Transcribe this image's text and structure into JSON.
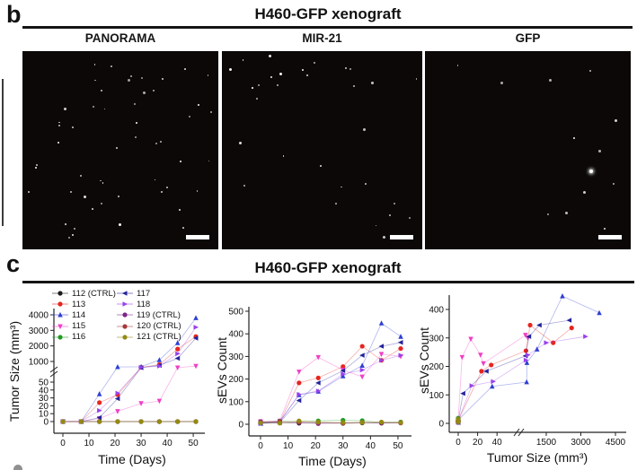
{
  "figure": {
    "panel_b": {
      "label": "b",
      "title": "H460-GFP xenograft",
      "images": [
        {
          "name": "PANORAMA",
          "dot_count": 52,
          "seed": 7
        },
        {
          "name": "MIR-21",
          "dot_count": 30,
          "seed": 13
        },
        {
          "name": "GFP",
          "dot_count": 12,
          "seed": 21
        }
      ]
    },
    "panel_c": {
      "label": "c",
      "title": "H460-GFP xenograft"
    }
  },
  "days": [
    0,
    7,
    14,
    21,
    30,
    37,
    44,
    51
  ],
  "series": [
    {
      "id": "112",
      "label": "112 (CTRL)",
      "marker": "circle",
      "color": "#1a1a1a",
      "tumor": [
        0,
        0,
        0,
        0,
        0,
        0,
        0,
        0
      ],
      "sevs": [
        5,
        8,
        5,
        6,
        4,
        6,
        5,
        6
      ]
    },
    {
      "id": "113",
      "label": "113",
      "marker": "circle",
      "color": "#e62520",
      "tumor": [
        0,
        0,
        24,
        34,
        620,
        800,
        1800,
        2600
      ],
      "sevs": [
        8,
        10,
        183,
        205,
        255,
        345,
        283,
        335
      ]
    },
    {
      "id": "114",
      "label": "114",
      "marker": "triangle-up",
      "color": "#2f3fd3",
      "tumor": [
        0,
        0,
        35,
        650,
        660,
        1100,
        2200,
        3800
      ],
      "sevs": [
        4,
        12,
        130,
        145,
        213,
        260,
        447,
        388
      ]
    },
    {
      "id": "115",
      "label": "115",
      "marker": "triangle-down",
      "color": "#ef3fc6",
      "tumor": [
        0,
        0,
        4,
        13,
        23,
        26,
        600,
        700
      ],
      "sevs": [
        12,
        15,
        232,
        296,
        240,
        210,
        310,
        300
      ]
    },
    {
      "id": "116",
      "label": "116",
      "marker": "circle",
      "color": "#1f9b1f",
      "tumor": [
        0,
        0,
        0,
        0,
        0,
        0,
        0,
        0
      ],
      "sevs": [
        10,
        14,
        12,
        15,
        18,
        16,
        8,
        10
      ]
    },
    {
      "id": "117",
      "label": "117",
      "marker": "triangle-left",
      "color": "#23239c",
      "tumor": [
        0,
        0,
        5,
        29,
        600,
        750,
        1200,
        2500
      ],
      "sevs": [
        3,
        8,
        105,
        183,
        237,
        305,
        345,
        362
      ]
    },
    {
      "id": "118",
      "label": "118",
      "marker": "triangle-right",
      "color": "#9a41ec",
      "tumor": [
        0,
        0,
        14,
        36,
        620,
        700,
        1500,
        3200
      ],
      "sevs": [
        6,
        10,
        132,
        147,
        222,
        240,
        283,
        305
      ]
    },
    {
      "id": "119",
      "label": "119 (CTRL)",
      "marker": "circle",
      "color": "#7c2688",
      "tumor": [
        0,
        0,
        0,
        0,
        0,
        0,
        0,
        0
      ],
      "sevs": [
        12,
        6,
        8,
        3,
        6,
        8,
        6,
        8
      ]
    },
    {
      "id": "120",
      "label": "120 (CTRL)",
      "marker": "circle",
      "color": "#a83838",
      "tumor": [
        0,
        0,
        0,
        0,
        0,
        0,
        0,
        0
      ],
      "sevs": [
        8,
        12,
        10,
        8,
        5,
        8,
        8,
        6
      ]
    },
    {
      "id": "121",
      "label": "121 (CTRL)",
      "marker": "circle",
      "color": "#938a12",
      "tumor": [
        0,
        0,
        0,
        0,
        0,
        0,
        0,
        0
      ],
      "sevs": [
        6,
        5,
        15,
        10,
        8,
        8,
        10,
        8
      ]
    }
  ],
  "legend": {
    "columns": [
      [
        "112",
        "113",
        "114",
        "115",
        "116"
      ],
      [
        "117",
        "118",
        "119",
        "120",
        "121"
      ]
    ]
  },
  "chart_data": [
    {
      "type": "line",
      "title": "",
      "xlabel": "Time (Days)",
      "ylabel": "Tumor Size (mm³)",
      "x_field": "days",
      "y_field": "tumor",
      "x_ticks": [
        0,
        10,
        20,
        30,
        40,
        50
      ],
      "y_ticks": [
        0,
        10,
        20,
        30,
        40,
        50,
        1000,
        2000,
        3000,
        4000
      ],
      "y_break_between": [
        50,
        1000
      ],
      "xlim": [
        0,
        51
      ],
      "ylim_lower": [
        0,
        50
      ],
      "ylim_upper": [
        1000,
        4000
      ],
      "grid": false
    },
    {
      "type": "line",
      "title": "",
      "xlabel": "Time (Days)",
      "ylabel": "sEVs Count",
      "x_field": "days",
      "y_field": "sevs",
      "x_ticks": [
        0,
        10,
        20,
        30,
        40,
        50
      ],
      "y_ticks": [
        0,
        100,
        200,
        300,
        400,
        500
      ],
      "xlim": [
        0,
        51
      ],
      "ylim": [
        0,
        500
      ],
      "grid": false
    },
    {
      "type": "scatter-line",
      "title": "",
      "xlabel": "Tumor Size (mm³)",
      "ylabel": "sEVs Count",
      "x_field": "tumor",
      "y_field": "sevs",
      "x_ticks": [
        0,
        20,
        40,
        1500,
        3000,
        4500
      ],
      "x_break_between": [
        50,
        1500
      ],
      "y_ticks": [
        0,
        100,
        200,
        300,
        400
      ],
      "xlim_lower": [
        0,
        50
      ],
      "xlim_upper": [
        1500,
        4500
      ],
      "ylim": [
        0,
        450
      ],
      "grid": false
    }
  ]
}
